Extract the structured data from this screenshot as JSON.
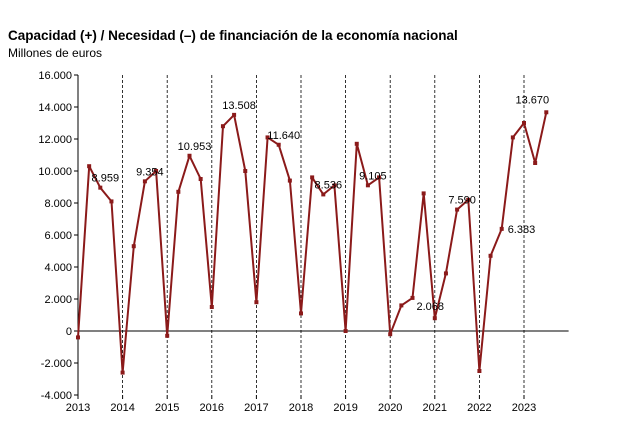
{
  "chart_data": {
    "type": "line",
    "title": "Capacidad (+) / Necesidad (–) de financiación de la economía nacional",
    "subtitle": "Millones de euros",
    "ylim": [
      -4000,
      16000
    ],
    "y_ticks": [
      -4000,
      -2000,
      0,
      2000,
      4000,
      6000,
      8000,
      10000,
      12000,
      14000,
      16000
    ],
    "y_tick_labels": [
      "-4.000",
      "-2.000",
      "0",
      "2.000",
      "4.000",
      "6.000",
      "8.000",
      "10.000",
      "12.000",
      "14.000",
      "16.000"
    ],
    "x_tick_labels": [
      "2013",
      "2014",
      "2015",
      "2016",
      "2017",
      "2018",
      "2019",
      "2020",
      "2021",
      "2022",
      "2023"
    ],
    "vertical_gridlines": "dashed, one per year",
    "series_color": "#8b1a1a",
    "quarters_per_year": 4,
    "values": [
      -400,
      10300,
      8959,
      8100,
      -2600,
      5300,
      9354,
      10000,
      -300,
      8700,
      10953,
      9500,
      1500,
      12800,
      13508,
      10000,
      1800,
      12100,
      11640,
      9400,
      1100,
      9600,
      8536,
      9100,
      0,
      11700,
      9105,
      9600,
      -200,
      1600,
      2068,
      8600,
      800,
      3600,
      7590,
      8200,
      -2500,
      4700,
      6383,
      12100,
      13000,
      10500,
      13670
    ],
    "data_labels": [
      {
        "index": 2,
        "text": "8.959"
      },
      {
        "index": 6,
        "text": "9.354"
      },
      {
        "index": 10,
        "text": "10.953"
      },
      {
        "index": 14,
        "text": "13.508"
      },
      {
        "index": 18,
        "text": "11.640"
      },
      {
        "index": 22,
        "text": "8.536"
      },
      {
        "index": 26,
        "text": "9.105"
      },
      {
        "index": 30,
        "text": "2.068"
      },
      {
        "index": 34,
        "text": "7.590"
      },
      {
        "index": 38,
        "text": "6.383"
      },
      {
        "index": 42,
        "text": "13.670"
      }
    ]
  }
}
